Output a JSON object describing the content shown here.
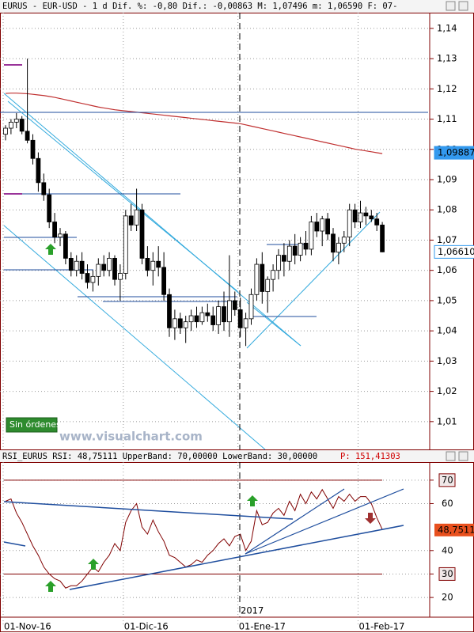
{
  "chart_data": [
    {
      "type": "candlestick",
      "title": "EURUS - EUR-USD -   1 d Dif. %: -0,80 Dif.: -0,00863 M: 1,07496 m: 1,06590 F: 07-",
      "open": [
        1.105,
        1.107,
        1.109,
        1.11,
        1.106,
        1.103,
        1.097,
        1.089,
        1.085,
        1.076,
        1.071,
        1.072,
        1.064,
        1.06,
        1.063,
        1.059,
        1.056,
        1.058,
        1.062,
        1.06,
        1.064,
        1.057,
        1.059,
        1.078,
        1.075,
        1.08,
        1.064,
        1.06,
        1.063,
        1.061,
        1.052,
        1.041,
        1.044,
        1.041,
        1.043,
        1.045,
        1.043,
        1.046,
        1.045,
        1.042,
        1.048,
        1.043,
        1.05,
        1.047,
        1.041,
        1.044,
        1.052,
        1.062,
        1.053,
        1.057,
        1.06,
        1.065,
        1.063,
        1.068,
        1.065,
        1.069,
        1.067,
        1.076,
        1.073,
        1.077,
        1.072,
        1.066,
        1.069,
        1.071,
        1.08,
        1.076,
        1.079,
        1.078,
        1.077,
        1.075
      ],
      "high": [
        1.108,
        1.11,
        1.112,
        1.111,
        1.13,
        1.105,
        1.099,
        1.092,
        1.087,
        1.079,
        1.074,
        1.073,
        1.066,
        1.065,
        1.066,
        1.062,
        1.06,
        1.064,
        1.065,
        1.066,
        1.065,
        1.062,
        1.08,
        1.082,
        1.087,
        1.082,
        1.068,
        1.066,
        1.068,
        1.066,
        1.054,
        1.047,
        1.046,
        1.045,
        1.047,
        1.048,
        1.048,
        1.049,
        1.048,
        1.05,
        1.053,
        1.065,
        1.053,
        1.051,
        1.046,
        1.054,
        1.064,
        1.066,
        1.058,
        1.062,
        1.067,
        1.069,
        1.07,
        1.072,
        1.071,
        1.073,
        1.078,
        1.079,
        1.078,
        1.079,
        1.074,
        1.071,
        1.073,
        1.082,
        1.082,
        1.083,
        1.081,
        1.08,
        1.079,
        1.076
      ],
      "low": [
        1.103,
        1.105,
        1.107,
        1.105,
        1.102,
        1.095,
        1.086,
        1.083,
        1.074,
        1.069,
        1.068,
        1.062,
        1.058,
        1.058,
        1.057,
        1.054,
        1.053,
        1.055,
        1.058,
        1.058,
        1.055,
        1.05,
        1.057,
        1.073,
        1.073,
        1.062,
        1.058,
        1.055,
        1.058,
        1.05,
        1.038,
        1.037,
        1.039,
        1.036,
        1.04,
        1.041,
        1.042,
        1.043,
        1.04,
        1.039,
        1.04,
        1.038,
        1.045,
        1.038,
        1.035,
        1.042,
        1.05,
        1.049,
        1.046,
        1.053,
        1.057,
        1.058,
        1.06,
        1.062,
        1.063,
        1.065,
        1.065,
        1.071,
        1.068,
        1.07,
        1.063,
        1.062,
        1.066,
        1.068,
        1.074,
        1.074,
        1.075,
        1.076,
        1.073,
        1.066
      ],
      "close": [
        1.107,
        1.109,
        1.11,
        1.106,
        1.103,
        1.097,
        1.089,
        1.085,
        1.076,
        1.071,
        1.072,
        1.064,
        1.06,
        1.063,
        1.059,
        1.056,
        1.058,
        1.062,
        1.06,
        1.064,
        1.057,
        1.059,
        1.078,
        1.075,
        1.08,
        1.064,
        1.06,
        1.063,
        1.061,
        1.052,
        1.041,
        1.044,
        1.041,
        1.043,
        1.045,
        1.043,
        1.046,
        1.045,
        1.042,
        1.048,
        1.043,
        1.05,
        1.047,
        1.041,
        1.044,
        1.052,
        1.062,
        1.053,
        1.057,
        1.06,
        1.065,
        1.063,
        1.068,
        1.065,
        1.069,
        1.067,
        1.076,
        1.073,
        1.077,
        1.072,
        1.066,
        1.069,
        1.071,
        1.08,
        1.076,
        1.079,
        1.078,
        1.077,
        1.075,
        1.0661
      ],
      "moving_average": {
        "color": "#c03030",
        "values": [
          1.1185,
          1.1186,
          1.1186,
          1.1185,
          1.1184,
          1.1182,
          1.118,
          1.1178,
          1.1175,
          1.1172,
          1.1168,
          1.1164,
          1.116,
          1.1156,
          1.1152,
          1.1148,
          1.1144,
          1.114,
          1.1137,
          1.1134,
          1.1131,
          1.1129,
          1.1127,
          1.1125,
          1.1123,
          1.1121,
          1.1119,
          1.1117,
          1.1115,
          1.1113,
          1.1111,
          1.1109,
          1.1107,
          1.1105,
          1.1103,
          1.1101,
          1.1099,
          1.1097,
          1.1095,
          1.1093,
          1.1091,
          1.1089,
          1.1087,
          1.1085,
          1.1081,
          1.1077,
          1.1073,
          1.1069,
          1.1065,
          1.1061,
          1.1057,
          1.1053,
          1.1049,
          1.1045,
          1.1041,
          1.1037,
          1.1033,
          1.1029,
          1.1025,
          1.1021,
          1.1017,
          1.1013,
          1.1009,
          1.1005,
          1.1001,
          1.0998,
          1.0995,
          1.0992,
          1.0989,
          1.0986
        ]
      },
      "ylim": [
        1.0008,
        1.1452
      ],
      "yticks": [
        {
          "value": 1.14,
          "label": "1,14"
        },
        {
          "value": 1.13,
          "label": "1,13"
        },
        {
          "value": 1.12,
          "label": "1,12"
        },
        {
          "value": 1.11,
          "label": "1,11"
        },
        {
          "value": 1.1,
          "label": "1,10"
        },
        {
          "value": 1.09,
          "label": "1,09"
        },
        {
          "value": 1.08,
          "label": "1,08"
        },
        {
          "value": 1.07,
          "label": "1,07"
        },
        {
          "value": 1.06,
          "label": "1,06"
        },
        {
          "value": 1.05,
          "label": "1,05"
        },
        {
          "value": 1.04,
          "label": "1,04"
        },
        {
          "value": 1.03,
          "label": "1,03"
        },
        {
          "value": 1.02,
          "label": "1,02"
        },
        {
          "value": 1.01,
          "label": "1,01"
        }
      ],
      "price_tags": [
        {
          "value": 1.09887,
          "label": "1,09887",
          "color": "#3399ee"
        },
        {
          "value": 1.0661,
          "label": "1,06610",
          "color": "#ffffff"
        }
      ],
      "badge": "Sin órdenes",
      "watermark": "www.visualchart.com",
      "grid": true
    },
    {
      "type": "line",
      "title": "RSI_EURUS RSI: 48,75111 UpperBand: 70,00000 LowerBand: 30,00000",
      "subtitle": "P: 151,41303",
      "categories": [
        "01-Nov-16",
        null,
        null,
        null,
        null,
        null,
        null,
        null,
        null,
        null,
        null,
        null,
        null,
        null,
        null,
        null,
        null,
        null,
        null,
        null,
        null,
        null,
        "01-Dic-16",
        null,
        null,
        null,
        null,
        null,
        null,
        null,
        null,
        null,
        null,
        null,
        null,
        null,
        null,
        null,
        null,
        null,
        null,
        null,
        null,
        "01-Ene-17",
        null,
        null,
        null,
        null,
        null,
        null,
        null,
        null,
        null,
        null,
        null,
        null,
        null,
        null,
        null,
        null,
        null,
        null,
        null,
        null,
        null,
        "01-Feb-17",
        null,
        null,
        null,
        null
      ],
      "year_label": "2017",
      "series": [
        {
          "color": "#800000",
          "values": [
            61,
            62,
            56,
            52,
            47,
            42,
            38,
            33,
            30,
            28,
            27,
            24,
            25,
            25,
            27,
            30,
            33,
            31,
            35,
            38,
            43,
            40,
            52,
            57,
            60,
            50,
            47,
            53,
            48,
            44,
            38,
            37,
            35,
            33,
            34,
            36,
            35,
            38,
            40,
            43,
            45,
            42,
            46,
            47,
            40,
            44,
            57,
            51,
            52,
            56,
            58,
            55,
            61,
            57,
            64,
            60,
            65,
            62,
            66,
            62,
            58,
            63,
            61,
            64,
            61,
            63,
            63,
            60,
            54,
            49
          ]
        }
      ],
      "ylim": [
        11.6,
        77.7
      ],
      "yticks": [
        70,
        60,
        40,
        30,
        20
      ],
      "bands": [
        70,
        30
      ],
      "value_tag": {
        "value": 48.7511,
        "label": "48,7511"
      },
      "grid": true
    }
  ]
}
